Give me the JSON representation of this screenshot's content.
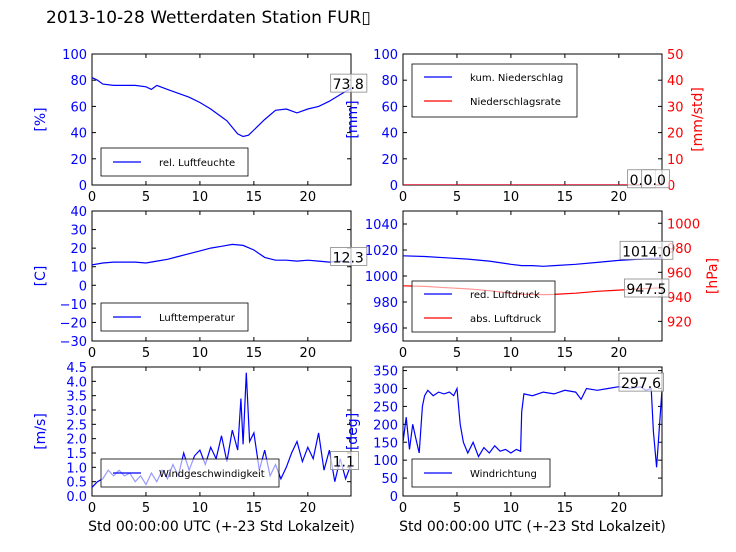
{
  "title": "2013-10-28 Wetterdaten Station FUR▯",
  "chart_data": [
    {
      "type": "line",
      "ylabel": "[%]",
      "xlim": [
        0,
        24
      ],
      "ylim": [
        0,
        100
      ],
      "yticks": [
        "0",
        "20",
        "40",
        "60",
        "80",
        "100"
      ],
      "xticks": [
        "0",
        "5",
        "10",
        "15",
        "20"
      ],
      "legend": "lower-left",
      "series": [
        {
          "name": "rel. Luftfeuchte",
          "axis": "left",
          "color": "#0000ff",
          "x": [
            0,
            0.5,
            1,
            2,
            3,
            4,
            5,
            5.5,
            6,
            7,
            8,
            9,
            10,
            11,
            12,
            12.5,
            13,
            13.5,
            14,
            14.5,
            15,
            16,
            17,
            18,
            19,
            20,
            21,
            22,
            23,
            24
          ],
          "y": [
            82,
            80,
            77,
            76,
            76,
            76,
            75,
            73,
            76,
            73,
            70,
            67,
            63,
            58,
            52,
            49,
            44,
            39,
            37,
            38,
            42,
            50,
            57,
            58,
            55,
            58,
            60,
            64,
            69,
            73.8
          ]
        }
      ],
      "annotations": [
        {
          "text": "73.8",
          "x": 22.3,
          "y": 77
        }
      ]
    },
    {
      "type": "line",
      "ylabel": "[mm]",
      "y2label": "[mm/std]",
      "xlim": [
        0,
        24
      ],
      "ylim": [
        0,
        100
      ],
      "y2lim": [
        0,
        50
      ],
      "yticks": [
        "0",
        "20",
        "40",
        "60",
        "80",
        "100"
      ],
      "y2ticks": [
        "0",
        "10",
        "20",
        "30",
        "40",
        "50"
      ],
      "xticks": [
        "0",
        "5",
        "10",
        "15",
        "20"
      ],
      "legend": "upper-left",
      "series": [
        {
          "name": "kum. Niederschlag",
          "axis": "left",
          "color": "#0000ff",
          "x": [
            0,
            24
          ],
          "y": [
            0,
            0
          ]
        },
        {
          "name": "Niederschlagsrate",
          "axis": "right",
          "color": "#ff0000",
          "x": [
            0,
            24
          ],
          "y": [
            0,
            0
          ]
        }
      ],
      "annotations": [
        {
          "text": "0.0",
          "x": 21.0,
          "y": 4
        },
        {
          "text": "0.0",
          "x": 22.3,
          "y": 4
        }
      ]
    },
    {
      "type": "line",
      "ylabel": "[C]",
      "xlim": [
        0,
        24
      ],
      "ylim": [
        -30,
        40
      ],
      "yticks": [
        "−30",
        "−20",
        "−10",
        "0",
        "10",
        "20",
        "30",
        "40"
      ],
      "xticks": [
        "0",
        "5",
        "10",
        "15",
        "20"
      ],
      "legend": "lower-left",
      "series": [
        {
          "name": "Lufttemperatur",
          "axis": "left",
          "color": "#0000ff",
          "x": [
            0,
            1,
            2,
            3,
            4,
            5,
            6,
            7,
            8,
            9,
            10,
            11,
            12,
            13,
            14,
            15,
            15.5,
            16,
            17,
            18,
            19,
            20,
            21,
            22,
            23,
            24
          ],
          "y": [
            11,
            12,
            12.5,
            12.5,
            12.5,
            12,
            13,
            14,
            15.5,
            17,
            18.5,
            20,
            21,
            22,
            21.5,
            19,
            17,
            15,
            13.5,
            13.5,
            13,
            13.5,
            13,
            12.5,
            13,
            12.3
          ]
        }
      ],
      "annotations": [
        {
          "text": "12.3",
          "x": 22.3,
          "y": 15
        }
      ]
    },
    {
      "type": "line",
      "ylabel": "[hPa]",
      "xlim": [
        0,
        24
      ],
      "ylim": [
        950,
        1050
      ],
      "y2lim": [
        904,
        1010
      ],
      "yticks": [
        "960",
        "980",
        "1000",
        "1020",
        "1040"
      ],
      "y2ticks": [
        "920",
        "940",
        "960",
        "980",
        "1000"
      ],
      "xticks": [
        "0",
        "5",
        "10",
        "15",
        "20"
      ],
      "legend": "lower-left",
      "series": [
        {
          "name": "red. Luftdruck",
          "axis": "left",
          "color": "#0000ff",
          "x": [
            0,
            2,
            4,
            6,
            8,
            10,
            11,
            12,
            13,
            14,
            16,
            18,
            20,
            22,
            24
          ],
          "y": [
            1015.5,
            1015,
            1014,
            1013,
            1011.5,
            1009,
            1008,
            1008,
            1007.5,
            1008,
            1009,
            1010.5,
            1012,
            1013,
            1014.0
          ]
        }
      ],
      "series2": [
        {
          "name": "abs. Luftdruck",
          "axis": "right",
          "color": "#ff0000",
          "x": [
            0,
            2,
            4,
            6,
            8,
            10,
            11,
            12,
            13,
            14,
            16,
            18,
            20,
            22,
            24
          ],
          "y": [
            949,
            948.5,
            947.5,
            946.5,
            945,
            943,
            942,
            942,
            941.8,
            942,
            943,
            944.5,
            945.5,
            946.5,
            947.5
          ]
        }
      ],
      "annotations": [
        {
          "text": "1014.0",
          "x": 20.3,
          "y": 1019
        },
        {
          "text": "947.5",
          "x": 20.7,
          "y": 990
        }
      ]
    },
    {
      "type": "line",
      "ylabel": "[m/s]",
      "xlim": [
        0,
        24
      ],
      "ylim": [
        0,
        4.5
      ],
      "yticks": [
        "0.0",
        "0.5",
        "1.0",
        "1.5",
        "2.0",
        "2.5",
        "3.0",
        "3.5",
        "4.0",
        "4.5"
      ],
      "xticks": [
        "0",
        "5",
        "10",
        "15",
        "20"
      ],
      "xlabel": "Std 00:00:00 UTC (+-23 Std Lokalzeit)",
      "legend": "lower-left",
      "series": [
        {
          "name": "Windgeschwindigkeit",
          "axis": "left",
          "color": "#0000ff",
          "x": [
            0,
            0.5,
            1,
            1.5,
            2,
            2.5,
            3,
            3.5,
            4,
            4.5,
            5,
            5.5,
            6,
            6.5,
            7,
            7.5,
            8,
            8.5,
            9,
            9.5,
            10,
            10.5,
            11,
            11.5,
            12,
            12.5,
            13,
            13.5,
            13.8,
            14,
            14.3,
            14.6,
            15,
            15.5,
            16,
            16.5,
            17,
            17.5,
            18,
            18.5,
            19,
            19.5,
            20,
            20.5,
            21,
            21.5,
            22,
            22.5,
            23,
            23.5,
            24
          ],
          "y": [
            0.3,
            0.5,
            0.6,
            0.9,
            0.7,
            0.9,
            0.7,
            0.8,
            0.5,
            0.7,
            0.4,
            0.8,
            0.5,
            0.9,
            0.6,
            1.1,
            0.7,
            1.5,
            0.9,
            1.4,
            1.6,
            1.1,
            1.7,
            1.3,
            2.1,
            1.2,
            2.3,
            1.6,
            3.4,
            1.8,
            4.3,
            1.9,
            2.2,
            0.9,
            1.6,
            0.7,
            1.1,
            0.6,
            1.0,
            1.5,
            1.9,
            1.2,
            1.7,
            1.3,
            2.2,
            0.9,
            1.6,
            0.5,
            1.3,
            0.6,
            1.1
          ]
        }
      ],
      "annotations": [
        {
          "text": "1.1",
          "x": 22.3,
          "y": 1.2
        }
      ]
    },
    {
      "type": "line",
      "ylabel": "[deg]",
      "xlim": [
        0,
        24
      ],
      "ylim": [
        0,
        360
      ],
      "yticks": [
        "0",
        "50",
        "100",
        "150",
        "200",
        "250",
        "300",
        "350"
      ],
      "xticks": [
        "0",
        "5",
        "10",
        "15",
        "20"
      ],
      "xlabel": "Std 00:00:00 UTC (+-23 Std Lokalzeit)",
      "legend": "lower-left",
      "series": [
        {
          "name": "Windrichtung",
          "axis": "left",
          "color": "#0000ff",
          "x": [
            0,
            0.3,
            0.6,
            0.9,
            1.2,
            1.5,
            1.8,
            2.0,
            2.3,
            2.8,
            3.3,
            3.8,
            4.3,
            4.7,
            5.0,
            5.3,
            5.6,
            6.0,
            6.5,
            7.0,
            7.5,
            8.0,
            8.5,
            9.0,
            9.5,
            10.0,
            10.5,
            10.9,
            11.0,
            11.2,
            12,
            13,
            14,
            15,
            16,
            16.5,
            17,
            18,
            19,
            20,
            21,
            22,
            22.5,
            23,
            23.2,
            23.5,
            24
          ],
          "y": [
            150,
            220,
            130,
            200,
            160,
            120,
            250,
            280,
            295,
            280,
            290,
            285,
            290,
            280,
            300,
            200,
            150,
            120,
            150,
            110,
            135,
            120,
            140,
            125,
            130,
            120,
            130,
            125,
            235,
            285,
            280,
            290,
            285,
            295,
            290,
            270,
            300,
            295,
            300,
            305,
            300,
            305,
            295,
            300,
            180,
            80,
            297.6
          ]
        }
      ],
      "annotations": [
        {
          "text": "297.6",
          "x": 20.2,
          "y": 315
        }
      ]
    }
  ]
}
